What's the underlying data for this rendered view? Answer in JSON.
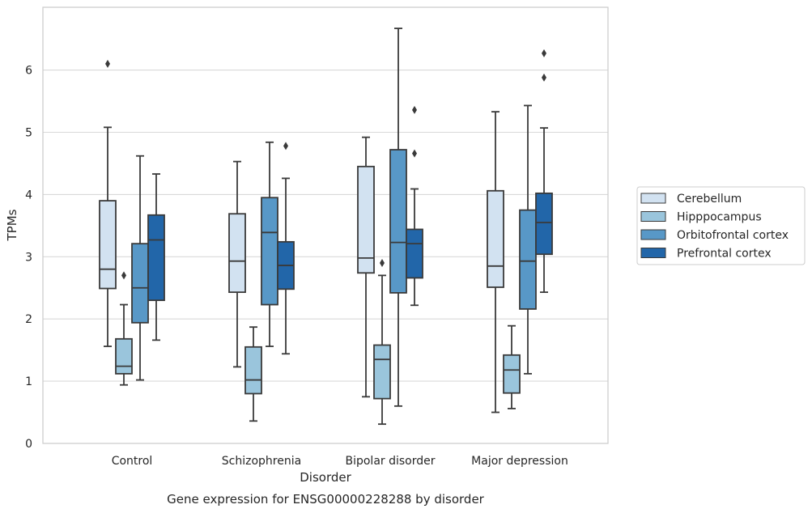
{
  "caption": "Gene expression for ENSG00000228288 by disorder",
  "chart_data": {
    "type": "box",
    "xlabel": "Disorder",
    "ylabel": "TPMs",
    "ylim": [
      0,
      7
    ],
    "yticks": [
      0,
      1,
      2,
      3,
      4,
      5,
      6
    ],
    "grid": "horizontal",
    "legend_position": "right",
    "categories": [
      "Control",
      "Schizophrenia",
      "Bipolar disorder",
      "Major depression"
    ],
    "series": [
      {
        "name": "Cerebellum",
        "color": "#d2e2f1",
        "boxes": [
          {
            "whislo": 1.56,
            "q1": 2.49,
            "med": 2.8,
            "q3": 3.9,
            "whishi": 5.08,
            "fliers": [
              6.1
            ]
          },
          {
            "whislo": 1.23,
            "q1": 2.43,
            "med": 2.93,
            "q3": 3.69,
            "whishi": 4.53,
            "fliers": []
          },
          {
            "whislo": 0.75,
            "q1": 2.74,
            "med": 2.98,
            "q3": 4.45,
            "whishi": 4.92,
            "fliers": []
          },
          {
            "whislo": 0.5,
            "q1": 2.51,
            "med": 2.85,
            "q3": 4.06,
            "whishi": 5.33,
            "fliers": []
          }
        ]
      },
      {
        "name": "Hipppocampus",
        "color": "#9ac5dc",
        "boxes": [
          {
            "whislo": 0.94,
            "q1": 1.12,
            "med": 1.24,
            "q3": 1.68,
            "whishi": 2.23,
            "fliers": [
              2.7
            ]
          },
          {
            "whislo": 0.36,
            "q1": 0.8,
            "med": 1.02,
            "q3": 1.55,
            "whishi": 1.87,
            "fliers": []
          },
          {
            "whislo": 0.31,
            "q1": 0.72,
            "med": 1.35,
            "q3": 1.58,
            "whishi": 2.7,
            "fliers": [
              2.9
            ]
          },
          {
            "whislo": 0.56,
            "q1": 0.81,
            "med": 1.18,
            "q3": 1.42,
            "whishi": 1.89,
            "fliers": []
          }
        ]
      },
      {
        "name": "Orbitofrontal cortex",
        "color": "#5898c7",
        "boxes": [
          {
            "whislo": 1.02,
            "q1": 1.94,
            "med": 2.5,
            "q3": 3.21,
            "whishi": 4.62,
            "fliers": []
          },
          {
            "whislo": 1.56,
            "q1": 2.23,
            "med": 3.39,
            "q3": 3.95,
            "whishi": 4.84,
            "fliers": []
          },
          {
            "whislo": 0.6,
            "q1": 2.42,
            "med": 3.23,
            "q3": 4.72,
            "whishi": 6.67,
            "fliers": []
          },
          {
            "whislo": 1.12,
            "q1": 2.16,
            "med": 2.93,
            "q3": 3.75,
            "whishi": 5.43,
            "fliers": []
          }
        ]
      },
      {
        "name": "Prefrontal cortex",
        "color": "#2266a9",
        "boxes": [
          {
            "whislo": 1.66,
            "q1": 2.3,
            "med": 3.27,
            "q3": 3.67,
            "whishi": 4.33,
            "fliers": []
          },
          {
            "whislo": 1.44,
            "q1": 2.48,
            "med": 2.86,
            "q3": 3.24,
            "whishi": 4.26,
            "fliers": [
              4.78
            ]
          },
          {
            "whislo": 2.22,
            "q1": 2.66,
            "med": 3.21,
            "q3": 3.44,
            "whishi": 4.09,
            "fliers": [
              4.66,
              5.36
            ]
          },
          {
            "whislo": 2.43,
            "q1": 3.04,
            "med": 3.55,
            "q3": 4.02,
            "whishi": 5.07,
            "fliers": [
              5.88,
              6.27
            ]
          }
        ]
      }
    ]
  }
}
